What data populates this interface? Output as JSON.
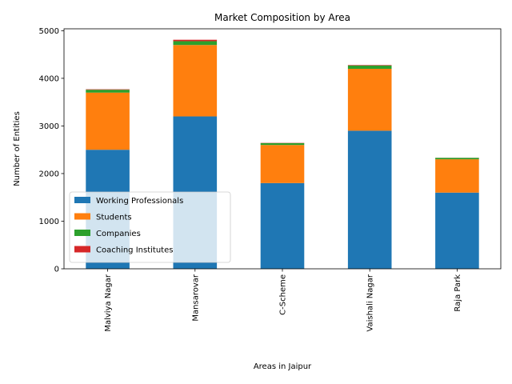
{
  "chart_data": {
    "type": "bar",
    "stacked": true,
    "title": "Market Composition by Area",
    "xlabel": "Areas in Jaipur",
    "ylabel": "Number of Entities",
    "categories": [
      "Malviya Nagar",
      "Mansarovar",
      "C-Scheme",
      "Vaishali Nagar",
      "Raja Park"
    ],
    "ylim": [
      0,
      5040
    ],
    "yticks": [
      0,
      1000,
      2000,
      3000,
      4000,
      5000
    ],
    "grid": false,
    "legend_position": "lower-left",
    "series": [
      {
        "name": "Working Professionals",
        "color": "#1f77b4",
        "values": [
          2500,
          3200,
          1800,
          2900,
          1600
        ]
      },
      {
        "name": "Students",
        "color": "#ff7f0e",
        "values": [
          1200,
          1500,
          800,
          1300,
          700
        ]
      },
      {
        "name": "Companies",
        "color": "#2ca02c",
        "values": [
          60,
          80,
          40,
          70,
          30
        ]
      },
      {
        "name": "Coaching Institutes",
        "color": "#d62728",
        "values": [
          10,
          30,
          5,
          10,
          2
        ]
      }
    ]
  }
}
